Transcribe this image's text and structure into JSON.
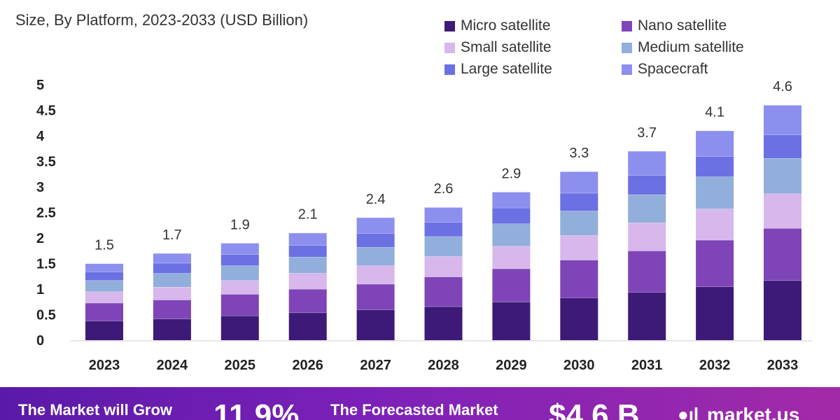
{
  "subtitle": "Size, By Platform, 2023-2033 (USD Billion)",
  "banner": {
    "grow_text": "The Market will Grow",
    "cagr": "11.9%",
    "forecast_text": "The Forecasted Market",
    "forecast_value": "$4.6 B",
    "logo_text": "market.us"
  },
  "chart_data": {
    "type": "bar",
    "stacked": true,
    "categories": [
      "2023",
      "2024",
      "2025",
      "2026",
      "2027",
      "2028",
      "2029",
      "2030",
      "2031",
      "2032",
      "2033"
    ],
    "totals": [
      1.5,
      1.7,
      1.9,
      2.1,
      2.4,
      2.6,
      2.9,
      3.3,
      3.7,
      4.1,
      4.6
    ],
    "total_labels": [
      "1.5",
      "1.7",
      "1.9",
      "2.1",
      "2.4",
      "2.6",
      "2.9",
      "3.3",
      "3.7",
      "4.1",
      "4.6"
    ],
    "series": [
      {
        "name": "Micro satellite",
        "color": "#3d1a78",
        "values": [
          0.38,
          0.42,
          0.48,
          0.54,
          0.6,
          0.66,
          0.75,
          0.83,
          0.94,
          1.05,
          1.17
        ]
      },
      {
        "name": "Nano satellite",
        "color": "#7e44b8",
        "values": [
          0.35,
          0.37,
          0.42,
          0.46,
          0.5,
          0.58,
          0.65,
          0.74,
          0.81,
          0.91,
          1.02
        ]
      },
      {
        "name": "Small satellite",
        "color": "#d7b7ec",
        "values": [
          0.22,
          0.25,
          0.27,
          0.31,
          0.36,
          0.4,
          0.44,
          0.48,
          0.55,
          0.61,
          0.68
        ]
      },
      {
        "name": "Medium satellite",
        "color": "#92aedb",
        "values": [
          0.22,
          0.27,
          0.29,
          0.32,
          0.36,
          0.39,
          0.44,
          0.48,
          0.55,
          0.63,
          0.69
        ]
      },
      {
        "name": "Large satellite",
        "color": "#6b70e3",
        "values": [
          0.17,
          0.2,
          0.22,
          0.23,
          0.27,
          0.28,
          0.31,
          0.35,
          0.38,
          0.4,
          0.46
        ]
      },
      {
        "name": "Spacecraft",
        "color": "#8c8fee",
        "values": [
          0.16,
          0.19,
          0.22,
          0.24,
          0.31,
          0.29,
          0.31,
          0.42,
          0.47,
          0.5,
          0.58
        ]
      }
    ],
    "y_ticks": [
      "0",
      "0.5",
      "1",
      "1.5",
      "2",
      "2.5",
      "3",
      "3.5",
      "4",
      "4.5",
      "5"
    ],
    "ylim": [
      0,
      5
    ],
    "grid": false,
    "legend_position": "top-right"
  }
}
